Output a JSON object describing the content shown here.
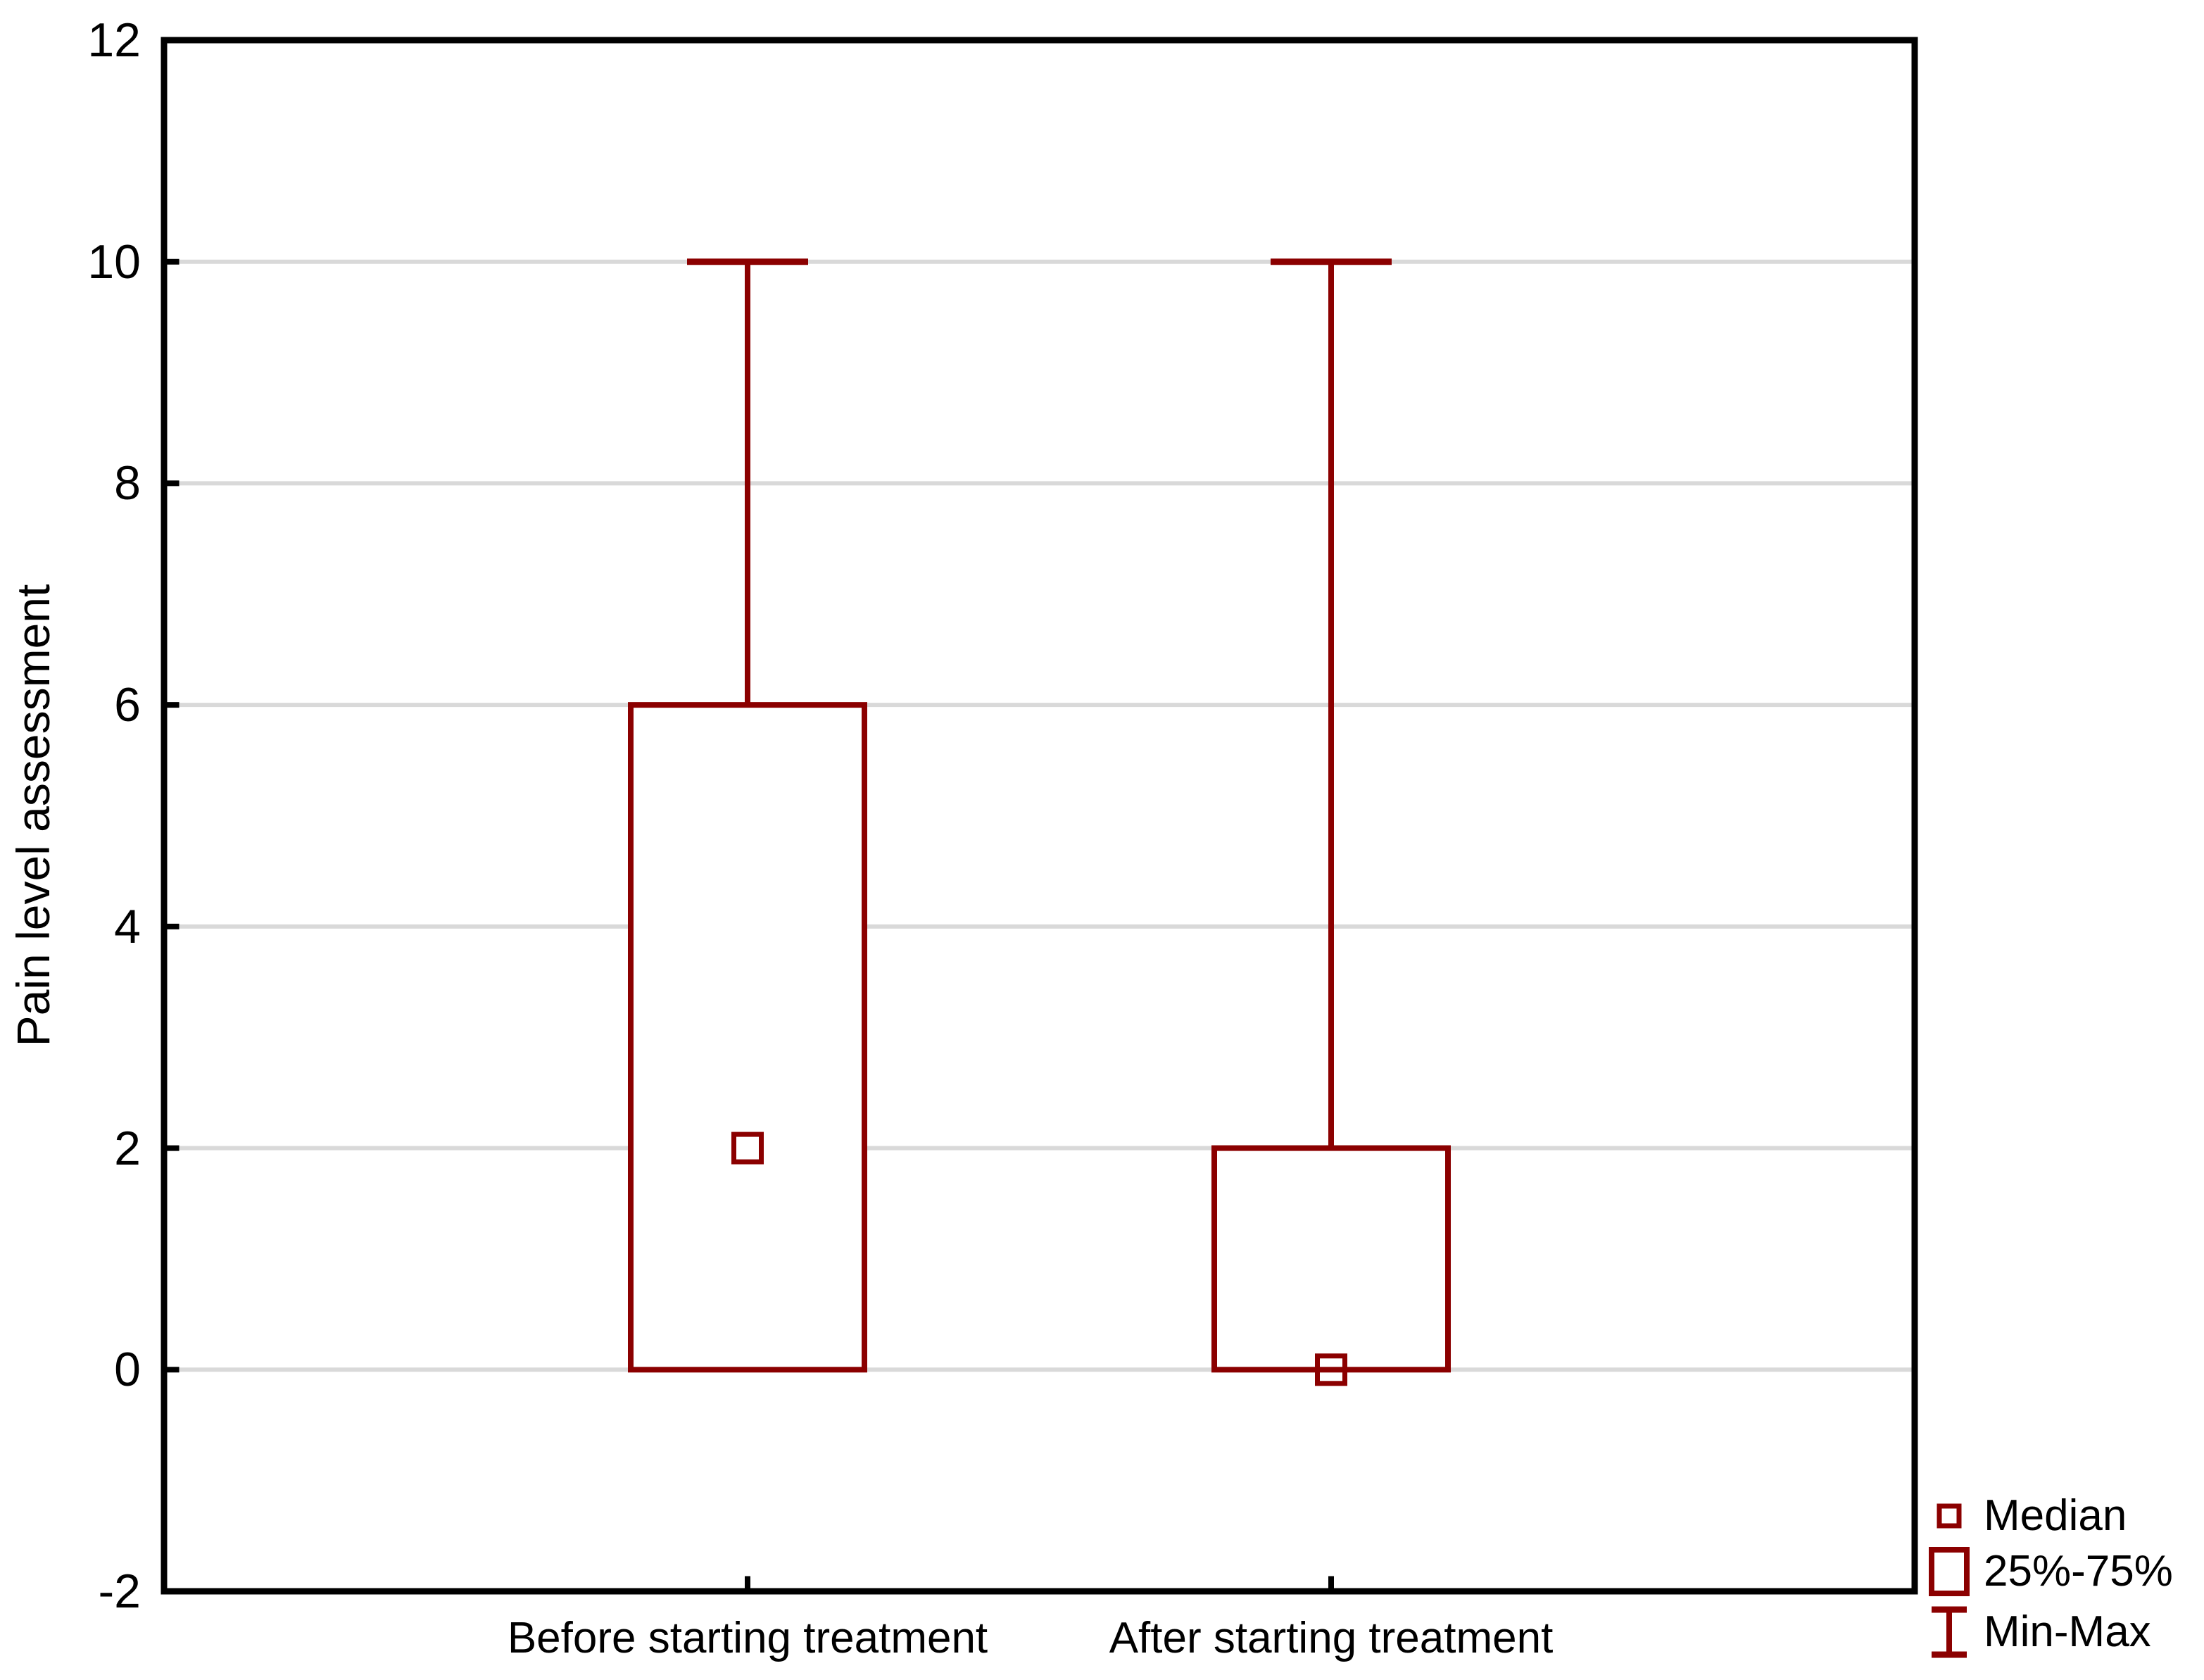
{
  "chart_data": {
    "type": "box",
    "title": "",
    "ylabel": "Pain level assessment",
    "xlabel": "",
    "ylim": [
      -2,
      12
    ],
    "ytick_labels": [
      "12",
      "10",
      "8",
      "6",
      "4",
      "2",
      "0",
      "-2"
    ],
    "ytick_values": [
      12,
      10,
      8,
      6,
      4,
      2,
      0,
      -2
    ],
    "grid": "horizontal",
    "categories": [
      "Before starting treatment",
      "After starting treatment"
    ],
    "series": [
      {
        "name": "Before starting treatment",
        "min": 0,
        "q1": 0,
        "median": 2,
        "q3": 6,
        "max": 10
      },
      {
        "name": "After starting treatment",
        "min": 0,
        "q1": 0,
        "median": 0,
        "q3": 2,
        "max": 10
      }
    ],
    "legend_position": "bottom-right",
    "legend": [
      {
        "icon": "median-square-icon",
        "label": "Median"
      },
      {
        "icon": "iqr-box-icon",
        "label": "25%-75%"
      },
      {
        "icon": "minmax-whisker-icon",
        "label": "Min-Max"
      }
    ],
    "colors": {
      "box": "#8B0000",
      "grid": "#D9D9D9",
      "axis": "#000000",
      "text": "#000000",
      "background": "#FFFFFF"
    }
  }
}
